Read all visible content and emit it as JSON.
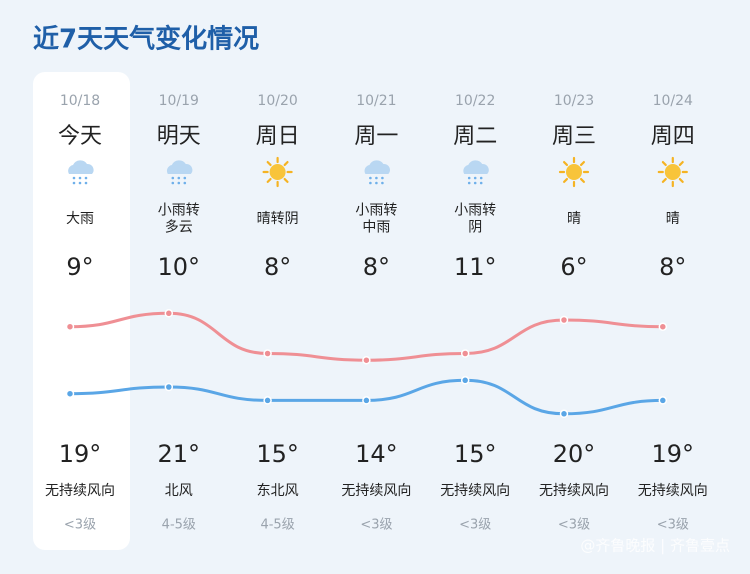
{
  "title": "近7天天气变化情况",
  "days": [
    {
      "date": "10/18",
      "weekday": "今天",
      "weather": [
        "大雨"
      ],
      "low": 9,
      "low_label": "9°",
      "high": 19,
      "high_label": "19°",
      "wind": "无持续风向",
      "level": "<3级"
    },
    {
      "date": "10/19",
      "weekday": "明天",
      "weather": [
        "小雨转",
        "多云"
      ],
      "low": 10,
      "low_label": "10°",
      "high": 21,
      "high_label": "21°",
      "wind": "北风",
      "level": "4-5级"
    },
    {
      "date": "10/20",
      "weekday": "周日",
      "weather": [
        "晴转阴"
      ],
      "low": 8,
      "low_label": "8°",
      "high": 15,
      "high_label": "15°",
      "wind": "东北风",
      "level": "4-5级"
    },
    {
      "date": "10/21",
      "weekday": "周一",
      "weather": [
        "小雨转",
        "中雨"
      ],
      "low": 8,
      "low_label": "8°",
      "high": 14,
      "high_label": "14°",
      "wind": "无持续风向",
      "level": "<3级"
    },
    {
      "date": "10/22",
      "weekday": "周二",
      "weather": [
        "小雨转",
        "阴"
      ],
      "low": 11,
      "low_label": "11°",
      "high": 15,
      "high_label": "15°",
      "wind": "无持续风向",
      "level": "<3级"
    },
    {
      "date": "10/23",
      "weekday": "周三",
      "weather": [
        "晴"
      ],
      "low": 6,
      "low_label": "6°",
      "high": 20,
      "high_label": "20°",
      "wind": "无持续风向",
      "level": "<3级"
    },
    {
      "date": "10/24",
      "weekday": "周四",
      "weather": [
        "晴"
      ],
      "low": 8,
      "low_label": "8°",
      "high": 19,
      "high_label": "19°",
      "wind": "无持续风向",
      "level": "<3级"
    }
  ],
  "watermark": "@齐鲁晚报 | 齐鲁壹点"
}
